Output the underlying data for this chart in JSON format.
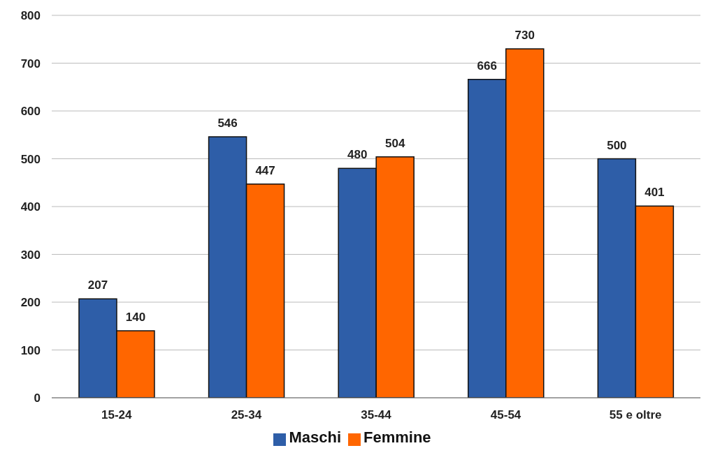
{
  "chart_data": {
    "type": "bar",
    "categories": [
      "15-24",
      "25-34",
      "35-44",
      "45-54",
      "55 e oltre"
    ],
    "series": [
      {
        "name": "Maschi",
        "color": "#2e5ea8",
        "values": [
          207,
          546,
          480,
          666,
          500
        ]
      },
      {
        "name": "Femmine",
        "color": "#ff6600",
        "values": [
          140,
          447,
          504,
          730,
          401
        ]
      }
    ],
    "ylim": [
      0,
      800
    ],
    "yticks": [
      0,
      100,
      200,
      300,
      400,
      500,
      600,
      700,
      800
    ],
    "grid": "y",
    "legend": "bottom",
    "data_labels": true
  }
}
